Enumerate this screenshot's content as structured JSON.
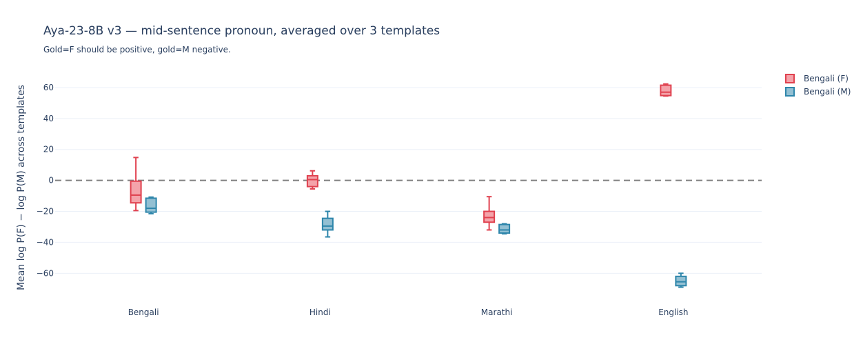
{
  "chart_data": {
    "type": "box",
    "title": "Aya-23-8B v3 — mid-sentence pronoun, averaged over 3 templates",
    "subtitle": "Gold=F should be positive, gold=M negative.",
    "xlabel": "",
    "ylabel": "Mean log P(F) − log P(M) across templates",
    "ylim": [
      -75,
      72
    ],
    "yticks": [
      60,
      40,
      20,
      0,
      -20,
      -40,
      -60
    ],
    "ytick_labels": [
      "60",
      "40",
      "20",
      "0",
      "−20",
      "−40",
      "−60"
    ],
    "categories": [
      "Bengali",
      "Hindi",
      "Marathi",
      "English"
    ],
    "reference_line": {
      "y": 0,
      "style": "dashed",
      "color": "#808080"
    },
    "grid": true,
    "legend_position": "top-right",
    "series": [
      {
        "name": "Bengali (F)",
        "line_color": "#e0414f",
        "fill_color": "#f4a3aa",
        "boxes": [
          {
            "category": "Bengali",
            "min": -19.5,
            "q1": -14.5,
            "median": -9.5,
            "q3": -0.5,
            "max": 14.8
          },
          {
            "category": "Hindi",
            "min": -5.5,
            "q1": -4.0,
            "median": 0.5,
            "q3": 3.0,
            "max": 6.2
          },
          {
            "category": "Marathi",
            "min": -32.0,
            "q1": -27.0,
            "median": -24.0,
            "q3": -20.0,
            "max": -10.5
          },
          {
            "category": "English",
            "min": 54.5,
            "q1": 54.8,
            "median": 57.0,
            "q3": 61.5,
            "max": 62.3
          }
        ]
      },
      {
        "name": "Bengali (M)",
        "line_color": "#2e86ab",
        "fill_color": "#93c0d3",
        "boxes": [
          {
            "category": "Bengali",
            "min": -21.5,
            "q1": -20.5,
            "median": -18.0,
            "q3": -11.5,
            "max": -10.8
          },
          {
            "category": "Hindi",
            "min": -36.5,
            "q1": -32.0,
            "median": -29.5,
            "q3": -24.5,
            "max": -20.0
          },
          {
            "category": "Marathi",
            "min": -34.5,
            "q1": -34.0,
            "median": -32.0,
            "q3": -28.5,
            "max": -28.0
          },
          {
            "category": "English",
            "min": -69.0,
            "q1": -68.0,
            "median": -65.5,
            "q3": -62.0,
            "max": -60.0
          }
        ]
      }
    ]
  }
}
